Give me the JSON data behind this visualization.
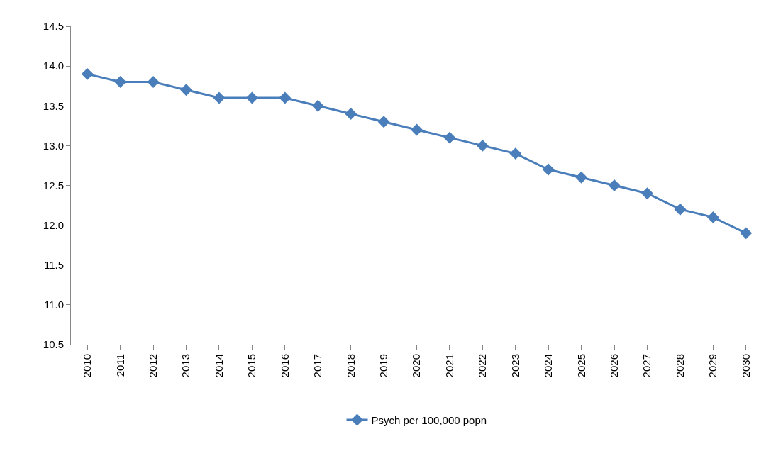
{
  "chart_data": {
    "type": "line",
    "categories": [
      "2010",
      "2011",
      "2012",
      "2013",
      "2014",
      "2015",
      "2016",
      "2017",
      "2018",
      "2019",
      "2020",
      "2021",
      "2022",
      "2023",
      "2024",
      "2025",
      "2026",
      "2027",
      "2028",
      "2029",
      "2030"
    ],
    "series": [
      {
        "name": "Psych per 100,000 popn",
        "color": "#4a7ebb",
        "values": [
          13.9,
          13.8,
          13.8,
          13.7,
          13.6,
          13.6,
          13.6,
          13.5,
          13.4,
          13.3,
          13.2,
          13.1,
          13.0,
          12.9,
          12.7,
          12.6,
          12.5,
          12.4,
          12.2,
          12.1,
          11.9
        ]
      }
    ],
    "ylim": [
      10.5,
      14.5
    ],
    "yticks": [
      {
        "value": 10.5,
        "label": "10.5"
      },
      {
        "value": 11,
        "label": "11.0"
      },
      {
        "value": 11.5,
        "label": "11.5"
      },
      {
        "value": 12,
        "label": "12.0"
      },
      {
        "value": 12.5,
        "label": "12.5"
      },
      {
        "value": 13,
        "label": "13.0"
      },
      {
        "value": 13.5,
        "label": "13.5"
      },
      {
        "value": 14,
        "label": "14.0"
      },
      {
        "value": 14.5,
        "label": "14.5"
      }
    ],
    "grid": false,
    "legend": "bottom",
    "marker": "diamond",
    "line_style": "solid"
  }
}
